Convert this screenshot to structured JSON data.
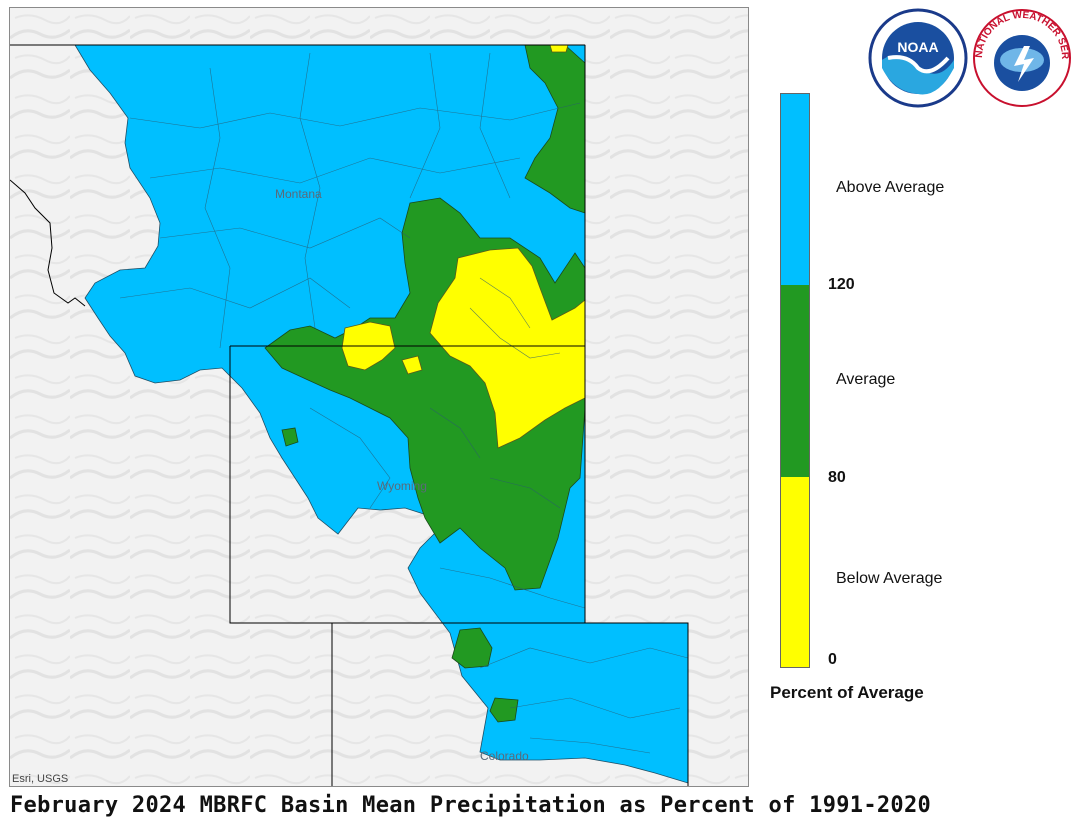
{
  "title": "February 2024 MBRFC Basin Mean Precipitation as Percent of 1991-2020",
  "attribution": "Esri, USGS",
  "state_labels": [
    "Montana",
    "Wyoming",
    "Colorado"
  ],
  "legend": {
    "unit_label": "Percent of Average",
    "categories": [
      {
        "label": "Above Average",
        "color": "#00bfff"
      },
      {
        "label": "Average",
        "color": "#229922"
      },
      {
        "label": "Below Average",
        "color": "#ffff00"
      }
    ],
    "breaks": [
      "120",
      "80",
      "0"
    ]
  },
  "colors": {
    "above": "#00bfff",
    "average": "#229922",
    "below": "#ffff00",
    "terrain": "#f2f2f2"
  },
  "logos": [
    {
      "name": "noaa-logo",
      "text": "NOAA"
    },
    {
      "name": "nws-logo",
      "text": "NATIONAL WEATHER SERVICE"
    }
  ]
}
